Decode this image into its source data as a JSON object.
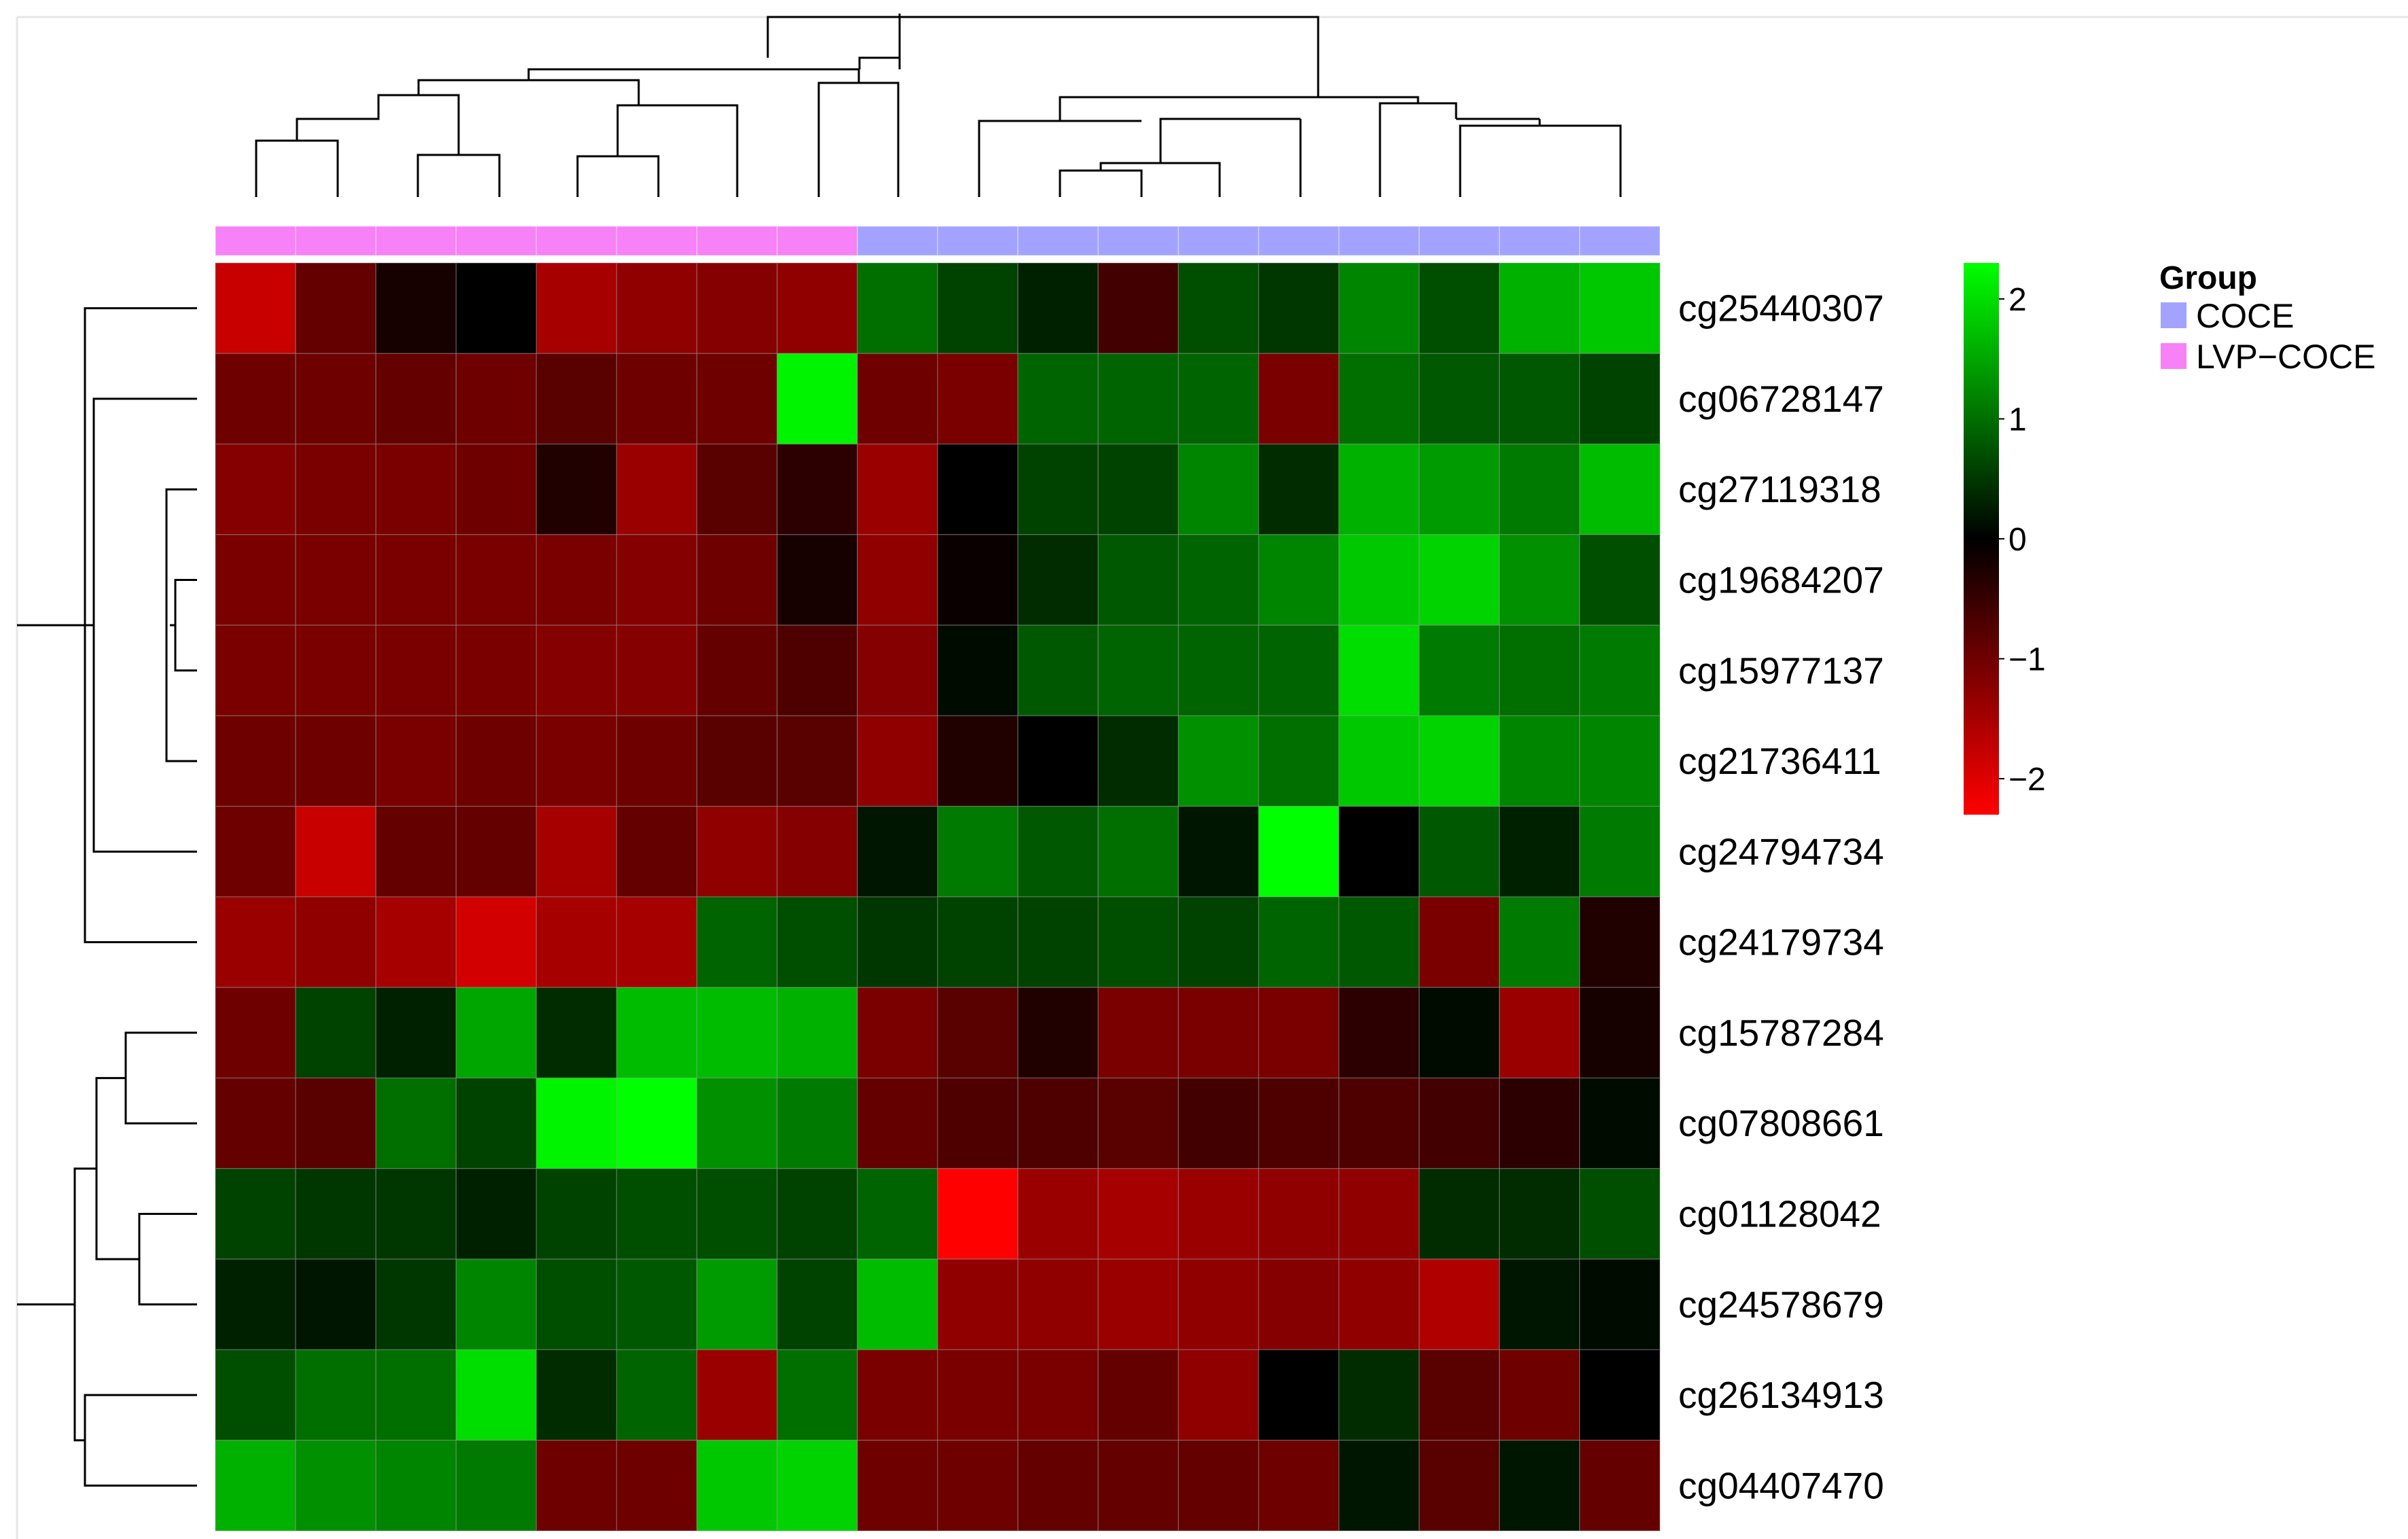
{
  "chart_data": {
    "type": "heatmap",
    "title": "",
    "xlabel": "",
    "ylabel": "",
    "rows": [
      "cg25440307",
      "cg06728147",
      "cg27119318",
      "cg19684207",
      "cg15977137",
      "cg21736411",
      "cg24794734",
      "cg24179734",
      "cg15787284",
      "cg07808661",
      "cg01128042",
      "cg24578679",
      "cg26134913",
      "cg04407470"
    ],
    "column_groups": [
      "LVP-COCE",
      "LVP-COCE",
      "LVP-COCE",
      "LVP-COCE",
      "LVP-COCE",
      "LVP-COCE",
      "LVP-COCE",
      "LVP-COCE",
      "COCE",
      "COCE",
      "COCE",
      "COCE",
      "COCE",
      "COCE",
      "COCE",
      "COCE",
      "COCE",
      "COCE"
    ],
    "values": [
      [
        -1.8,
        -0.9,
        -0.2,
        0.0,
        -1.5,
        -1.3,
        -1.2,
        -1.3,
        1.0,
        0.6,
        0.3,
        -0.6,
        0.7,
        0.5,
        1.2,
        0.7,
        1.6,
        1.8
      ],
      [
        -1.0,
        -1.0,
        -0.9,
        -1.0,
        -0.8,
        -1.0,
        -1.0,
        2.2,
        -1.0,
        -1.1,
        0.9,
        0.9,
        0.9,
        -1.1,
        1.0,
        0.8,
        0.8,
        0.6
      ],
      [
        -1.2,
        -1.1,
        -1.1,
        -1.0,
        -0.3,
        -1.4,
        -0.8,
        -0.4,
        -1.4,
        0.0,
        0.6,
        0.6,
        1.2,
        0.4,
        1.6,
        1.4,
        1.1,
        1.7
      ],
      [
        -1.1,
        -1.1,
        -1.1,
        -1.1,
        -1.1,
        -1.2,
        -1.0,
        -0.2,
        -1.3,
        -0.1,
        0.4,
        0.8,
        0.9,
        1.2,
        1.8,
        1.9,
        1.3,
        0.7
      ],
      [
        -1.1,
        -1.1,
        -1.1,
        -1.1,
        -1.2,
        -1.2,
        -0.9,
        -0.7,
        -1.2,
        0.1,
        0.8,
        0.9,
        0.9,
        0.9,
        2.0,
        1.1,
        1.0,
        1.1
      ],
      [
        -1.0,
        -1.0,
        -1.1,
        -1.0,
        -1.1,
        -1.0,
        -0.8,
        -0.8,
        -1.3,
        -0.3,
        0.0,
        0.4,
        1.3,
        1.0,
        1.8,
        1.9,
        1.2,
        1.2
      ],
      [
        -1.0,
        -1.8,
        -0.9,
        -0.9,
        -1.5,
        -0.9,
        -1.3,
        -1.2,
        0.2,
        1.1,
        0.8,
        1.0,
        0.2,
        2.3,
        0.0,
        0.8,
        0.3,
        1.1
      ],
      [
        -1.4,
        -1.3,
        -1.5,
        -1.9,
        -1.5,
        -1.5,
        0.9,
        0.7,
        0.5,
        0.6,
        0.6,
        0.7,
        0.6,
        0.9,
        0.8,
        -1.1,
        1.1,
        -0.3
      ],
      [
        -1.0,
        0.6,
        0.3,
        1.5,
        0.4,
        1.7,
        1.7,
        1.6,
        -1.1,
        -0.8,
        -0.3,
        -1.1,
        -1.1,
        -1.1,
        -0.4,
        0.1,
        -1.4,
        -0.2
      ],
      [
        -0.9,
        -0.8,
        1.0,
        0.6,
        2.2,
        2.3,
        1.3,
        1.1,
        -0.9,
        -0.7,
        -0.7,
        -0.8,
        -0.6,
        -0.7,
        -0.7,
        -0.6,
        -0.4,
        0.1
      ],
      [
        0.6,
        0.5,
        0.5,
        0.3,
        0.6,
        0.7,
        0.7,
        0.6,
        0.9,
        -2.3,
        -1.4,
        -1.5,
        -1.4,
        -1.3,
        -1.3,
        0.4,
        0.4,
        0.7
      ],
      [
        0.3,
        0.2,
        0.5,
        1.2,
        0.7,
        0.8,
        1.4,
        0.6,
        1.7,
        -1.3,
        -1.3,
        -1.4,
        -1.3,
        -1.2,
        -1.3,
        -1.6,
        0.2,
        0.1
      ],
      [
        0.7,
        1.0,
        1.0,
        2.0,
        0.4,
        0.9,
        -1.4,
        1.0,
        -1.1,
        -1.1,
        -1.1,
        -0.9,
        -1.3,
        0.0,
        0.4,
        -0.8,
        -1.0,
        0.0
      ],
      [
        1.6,
        1.3,
        1.2,
        1.1,
        -1.0,
        -1.0,
        1.8,
        1.9,
        -1.0,
        -1.0,
        -0.9,
        -0.9,
        -0.9,
        -1.0,
        0.2,
        -0.8,
        0.2,
        -0.9
      ]
    ],
    "color_scale": {
      "low": "#ff0000",
      "mid": "#000000",
      "high": "#00ff00",
      "range": [
        -2.3,
        2.3
      ],
      "ticks": [
        2,
        1,
        0,
        -1,
        -2
      ],
      "tick_labels": [
        "2",
        "1",
        "0",
        "−1",
        "−2"
      ]
    },
    "legend": {
      "title": "Group",
      "placement": "right",
      "entries": [
        {
          "label": "COCE",
          "color": "#a3a3ff"
        },
        {
          "label": "LVP−COCE",
          "color": "#f781f6"
        }
      ]
    },
    "group_colors": {
      "COCE": "#a3a3ff",
      "LVP-COCE": "#f781f6"
    },
    "dendrograms": {
      "rows": true,
      "columns": true
    }
  }
}
